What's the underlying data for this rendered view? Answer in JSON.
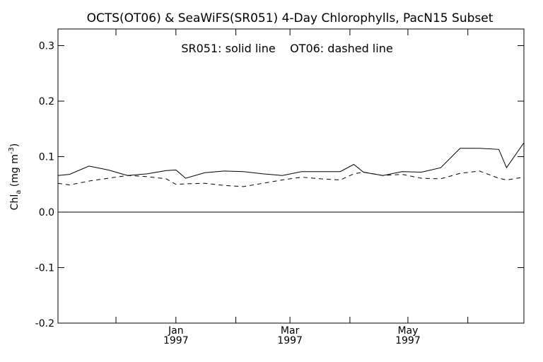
{
  "chart_data": {
    "type": "line",
    "title": "OCTS(OT06) & SeaWiFS(SR051) 4-Day Chlorophylls, PacN15 Subset",
    "legend_text": "SR051: solid line    OT06: dashed line",
    "ylabel_main": "Chl",
    "ylabel_sub": "a",
    "ylabel_units_open": " (mg m",
    "ylabel_units_sup": "-3",
    "ylabel_units_close": ")",
    "ylim": [
      -0.2,
      0.33
    ],
    "xlim": [
      "1996-11-01",
      "1997-06-30"
    ],
    "grid": false,
    "legend_position": "top-center",
    "yticks": [
      {
        "value": -0.2,
        "label": "-0.2"
      },
      {
        "value": -0.1,
        "label": "-0.1"
      },
      {
        "value": 0.0,
        "label": "0.0"
      },
      {
        "value": 0.1,
        "label": "0.1"
      },
      {
        "value": 0.2,
        "label": "0.2"
      },
      {
        "value": 0.3,
        "label": "0.3"
      }
    ],
    "xticks": [
      {
        "date": "1996-12-01",
        "month": "",
        "year": ""
      },
      {
        "date": "1997-01-01",
        "month": "Jan",
        "year": "1997"
      },
      {
        "date": "1997-02-01",
        "month": "",
        "year": ""
      },
      {
        "date": "1997-03-01",
        "month": "Mar",
        "year": "1997"
      },
      {
        "date": "1997-04-01",
        "month": "",
        "year": ""
      },
      {
        "date": "1997-05-01",
        "month": "May",
        "year": "1997"
      },
      {
        "date": "1997-06-01",
        "month": "",
        "year": ""
      }
    ],
    "zero_line": 0.0,
    "series": [
      {
        "style": "solid",
        "x": [
          "1996-11-01",
          "1996-11-07",
          "1996-11-17",
          "1996-11-27",
          "1996-12-07",
          "1996-12-17",
          "1996-12-27",
          "1997-01-01",
          "1997-01-06",
          "1997-01-16",
          "1997-01-26",
          "1997-02-05",
          "1997-02-15",
          "1997-02-25",
          "1997-03-07",
          "1997-03-17",
          "1997-03-27",
          "1997-04-03",
          "1997-04-08",
          "1997-04-18",
          "1997-04-28",
          "1997-05-08",
          "1997-05-18",
          "1997-05-28",
          "1997-06-07",
          "1997-06-17",
          "1997-06-21",
          "1997-06-30"
        ],
        "values": [
          0.066,
          0.068,
          0.083,
          0.076,
          0.066,
          0.069,
          0.075,
          0.076,
          0.061,
          0.071,
          0.074,
          0.073,
          0.069,
          0.066,
          0.073,
          0.073,
          0.073,
          0.086,
          0.072,
          0.066,
          0.073,
          0.072,
          0.08,
          0.115,
          0.115,
          0.113,
          0.08,
          0.125
        ]
      },
      {
        "style": "dashed",
        "x": [
          "1996-11-01",
          "1996-11-07",
          "1996-11-17",
          "1996-11-27",
          "1996-12-07",
          "1996-12-17",
          "1996-12-27",
          "1997-01-01",
          "1997-01-06",
          "1997-01-16",
          "1997-01-26",
          "1997-02-05",
          "1997-02-15",
          "1997-02-25",
          "1997-03-07",
          "1997-03-17",
          "1997-03-27",
          "1997-04-03",
          "1997-04-08",
          "1997-04-18",
          "1997-04-28",
          "1997-05-08",
          "1997-05-18",
          "1997-05-28",
          "1997-06-07",
          "1997-06-17",
          "1997-06-21",
          "1997-06-30"
        ],
        "values": [
          0.052,
          0.049,
          0.056,
          0.061,
          0.066,
          0.064,
          0.06,
          0.05,
          0.051,
          0.052,
          0.048,
          0.046,
          0.052,
          0.058,
          0.063,
          0.06,
          0.058,
          0.069,
          0.072,
          0.066,
          0.068,
          0.061,
          0.06,
          0.07,
          0.074,
          0.061,
          0.058,
          0.063
        ]
      }
    ]
  }
}
